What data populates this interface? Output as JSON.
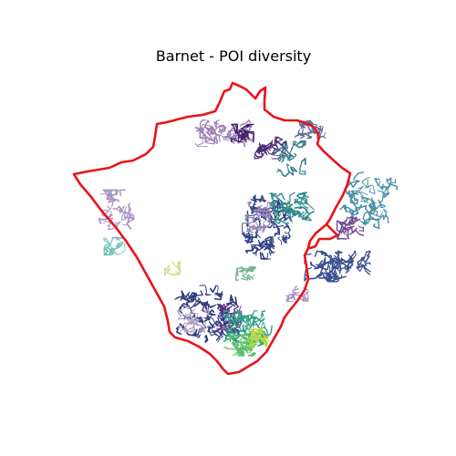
{
  "figure": {
    "title": "Barnet - POI diversity"
  },
  "map": {
    "boundary_color": "#e8141a",
    "colormap": "viridis",
    "clusters": [
      {
        "id": "north-center",
        "color": "#9a7eb2"
      },
      {
        "id": "north-dark",
        "color": "#45206a"
      },
      {
        "id": "north-purple",
        "color": "#4b2a78"
      },
      {
        "id": "north-east-teal",
        "color": "#3a7c8c"
      },
      {
        "id": "north-east-blue",
        "color": "#5a6a9c"
      },
      {
        "id": "center-main",
        "color": "#2e3f82"
      },
      {
        "id": "center-teal",
        "color": "#2b8a88"
      },
      {
        "id": "center-light",
        "color": "#9a86b8"
      },
      {
        "id": "east-teal",
        "color": "#4a8ea6"
      },
      {
        "id": "east-purple",
        "color": "#6c4a90"
      },
      {
        "id": "east-blue",
        "color": "#3a4f8e"
      },
      {
        "id": "west-lavender",
        "color": "#a692c4"
      },
      {
        "id": "west-aqua",
        "color": "#6fc2b6"
      },
      {
        "id": "yellowgreen",
        "color": "#c8e08a"
      },
      {
        "id": "mid-green",
        "color": "#6fb08a"
      },
      {
        "id": "south-east-lav",
        "color": "#a996c2"
      },
      {
        "id": "south-dark",
        "color": "#2c3a7a"
      },
      {
        "id": "south-purple",
        "color": "#5a2e82"
      },
      {
        "id": "south-teal",
        "color": "#2fa088"
      },
      {
        "id": "south-green",
        "color": "#58c068"
      },
      {
        "id": "south-yellow",
        "color": "#b8d83a"
      },
      {
        "id": "south-lav",
        "color": "#b4a2cc"
      }
    ]
  }
}
